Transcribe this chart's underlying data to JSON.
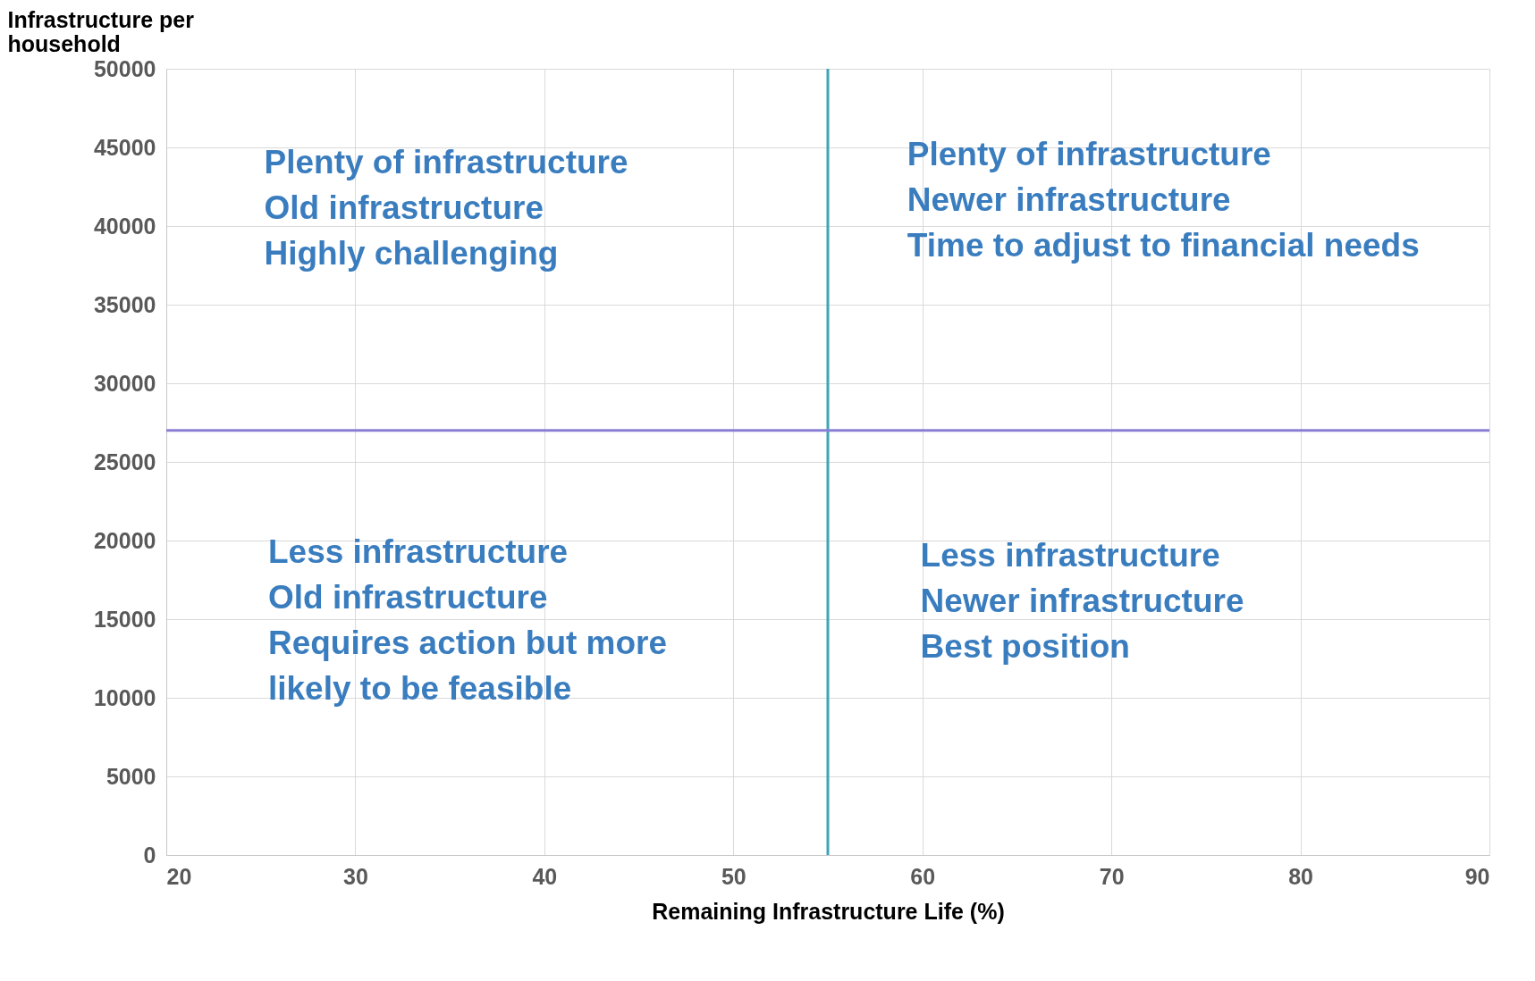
{
  "chart_data": {
    "type": "scatter",
    "xlabel": "Remaining Infrastructure Life (%)",
    "ylabel": "Infrastructure per household",
    "xlim": [
      20,
      90
    ],
    "xticks": [
      20,
      30,
      40,
      50,
      60,
      70,
      80,
      90
    ],
    "ylim": [
      0,
      50000
    ],
    "yticks": [
      0,
      5000,
      10000,
      15000,
      20000,
      25000,
      30000,
      35000,
      40000,
      45000,
      50000
    ],
    "grid": true,
    "ref_lines": [
      {
        "axis": "x",
        "value": 55,
        "color": "#3fa5b5"
      },
      {
        "axis": "y",
        "value": 27000,
        "color": "#8a7fd4"
      }
    ],
    "annotations": [
      "Plenty of infrastructure\nOld infrastructure\nHighly challenging",
      "Plenty of infrastructure\nNewer infrastructure\nTime to adjust to financial needs",
      "Less infrastructure\nOld infrastructure\nRequires action but more\nlikely to be feasible",
      "Less infrastructure\nNewer infrastructure\nBest position"
    ]
  }
}
